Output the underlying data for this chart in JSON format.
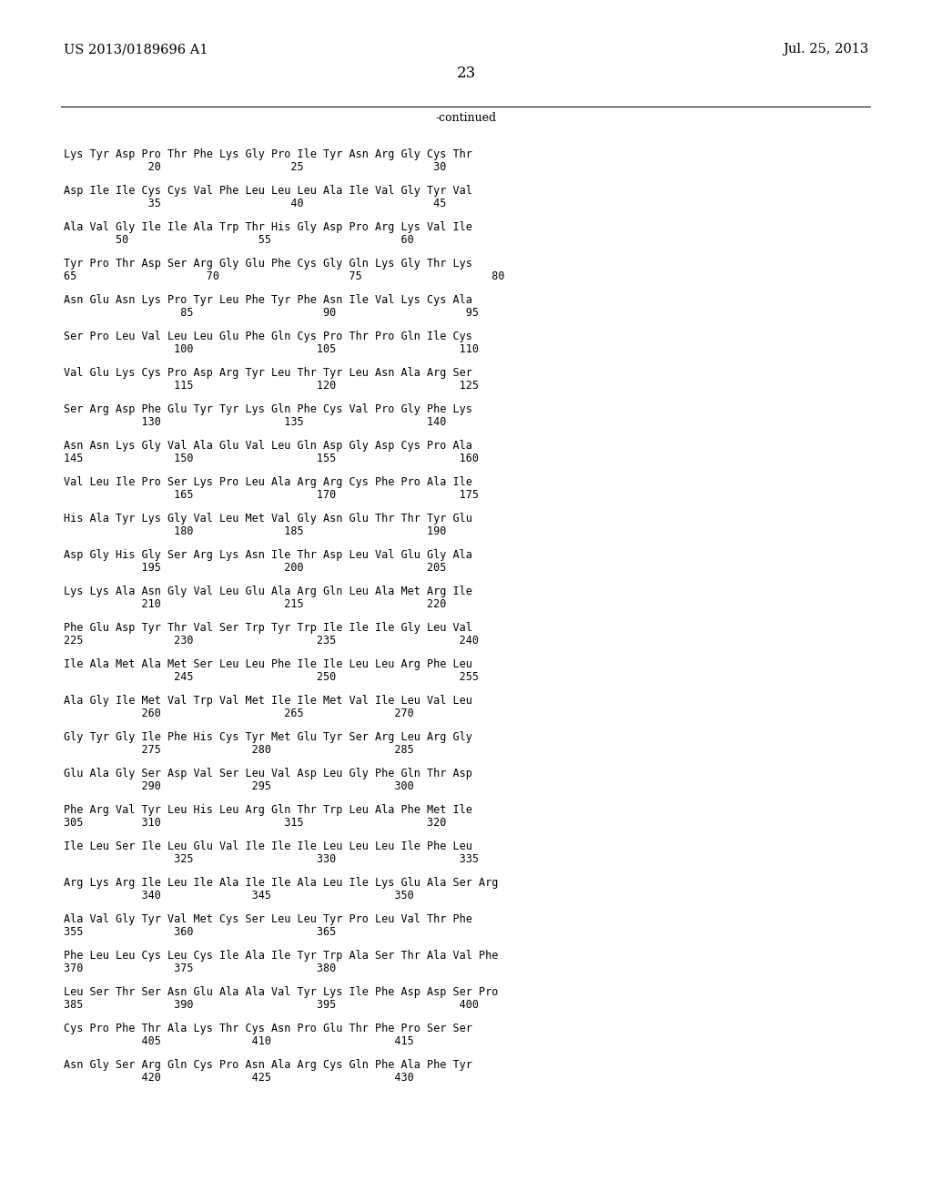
{
  "header_left": "US 2013/0189696 A1",
  "header_right": "Jul. 25, 2013",
  "page_number": "23",
  "continued_label": "-continued",
  "background_color": "#ffffff",
  "text_color": "#000000",
  "blocks": [
    {
      "seq": "Lys Tyr Asp Pro Thr Phe Lys Gly Pro Ile Tyr Asn Arg Gly Cys Thr",
      "num": "             20                    25                    30"
    },
    {
      "seq": "Asp Ile Ile Cys Cys Val Phe Leu Leu Leu Ala Ile Val Gly Tyr Val",
      "num": "             35                    40                    45"
    },
    {
      "seq": "Ala Val Gly Ile Ile Ala Trp Thr His Gly Asp Pro Arg Lys Val Ile",
      "num": "        50                    55                    60"
    },
    {
      "seq": "Tyr Pro Thr Asp Ser Arg Gly Glu Phe Cys Gly Gln Lys Gly Thr Lys",
      "num": "65                    70                    75                    80"
    },
    {
      "seq": "Asn Glu Asn Lys Pro Tyr Leu Phe Tyr Phe Asn Ile Val Lys Cys Ala",
      "num": "                  85                    90                    95"
    },
    {
      "seq": "Ser Pro Leu Val Leu Leu Glu Phe Gln Cys Pro Thr Pro Gln Ile Cys",
      "num": "                 100                   105                   110"
    },
    {
      "seq": "Val Glu Lys Cys Pro Asp Arg Tyr Leu Thr Tyr Leu Asn Ala Arg Ser",
      "num": "                 115                   120                   125"
    },
    {
      "seq": "Ser Arg Asp Phe Glu Tyr Tyr Lys Gln Phe Cys Val Pro Gly Phe Lys",
      "num": "            130                   135                   140"
    },
    {
      "seq": "Asn Asn Lys Gly Val Ala Glu Val Leu Gln Asp Gly Asp Cys Pro Ala",
      "num": "145              150                   155                   160"
    },
    {
      "seq": "Val Leu Ile Pro Ser Lys Pro Leu Ala Arg Arg Cys Phe Pro Ala Ile",
      "num": "                 165                   170                   175"
    },
    {
      "seq": "His Ala Tyr Lys Gly Val Leu Met Val Gly Asn Glu Thr Thr Tyr Glu",
      "num": "                 180              185                   190"
    },
    {
      "seq": "Asp Gly His Gly Ser Arg Lys Asn Ile Thr Asp Leu Val Glu Gly Ala",
      "num": "            195                   200                   205"
    },
    {
      "seq": "Lys Lys Ala Asn Gly Val Leu Glu Ala Arg Gln Leu Ala Met Arg Ile",
      "num": "            210                   215                   220"
    },
    {
      "seq": "Phe Glu Asp Tyr Thr Val Ser Trp Tyr Trp Ile Ile Ile Gly Leu Val",
      "num": "225              230                   235                   240"
    },
    {
      "seq": "Ile Ala Met Ala Met Ser Leu Leu Phe Ile Ile Leu Leu Arg Phe Leu",
      "num": "                 245                   250                   255"
    },
    {
      "seq": "Ala Gly Ile Met Val Trp Val Met Ile Ile Met Val Ile Leu Val Leu",
      "num": "            260                   265              270"
    },
    {
      "seq": "Gly Tyr Gly Ile Phe His Cys Tyr Met Glu Tyr Ser Arg Leu Arg Gly",
      "num": "            275              280                   285"
    },
    {
      "seq": "Glu Ala Gly Ser Asp Val Ser Leu Val Asp Leu Gly Phe Gln Thr Asp",
      "num": "            290              295                   300"
    },
    {
      "seq": "Phe Arg Val Tyr Leu His Leu Arg Gln Thr Trp Leu Ala Phe Met Ile",
      "num": "305         310                   315                   320"
    },
    {
      "seq": "Ile Leu Ser Ile Leu Glu Val Ile Ile Ile Leu Leu Leu Ile Phe Leu",
      "num": "                 325                   330                   335"
    },
    {
      "seq": "Arg Lys Arg Ile Leu Ile Ala Ile Ile Ala Leu Ile Lys Glu Ala Ser Arg",
      "num": "            340              345                   350"
    },
    {
      "seq": "Ala Val Gly Tyr Val Met Cys Ser Leu Leu Tyr Pro Leu Val Thr Phe",
      "num": "355              360                   365"
    },
    {
      "seq": "Phe Leu Leu Cys Leu Cys Ile Ala Ile Tyr Trp Ala Ser Thr Ala Val Phe",
      "num": "370              375                   380"
    },
    {
      "seq": "Leu Ser Thr Ser Asn Glu Ala Ala Val Tyr Lys Ile Phe Asp Asp Ser Pro",
      "num": "385              390                   395                   400"
    },
    {
      "seq": "Cys Pro Phe Thr Ala Lys Thr Cys Asn Pro Glu Thr Phe Pro Ser Ser",
      "num": "            405              410                   415"
    },
    {
      "seq": "Asn Gly Ser Arg Gln Cys Pro Asn Ala Arg Cys Gln Phe Ala Phe Tyr",
      "num": "            420              425                   430"
    }
  ]
}
